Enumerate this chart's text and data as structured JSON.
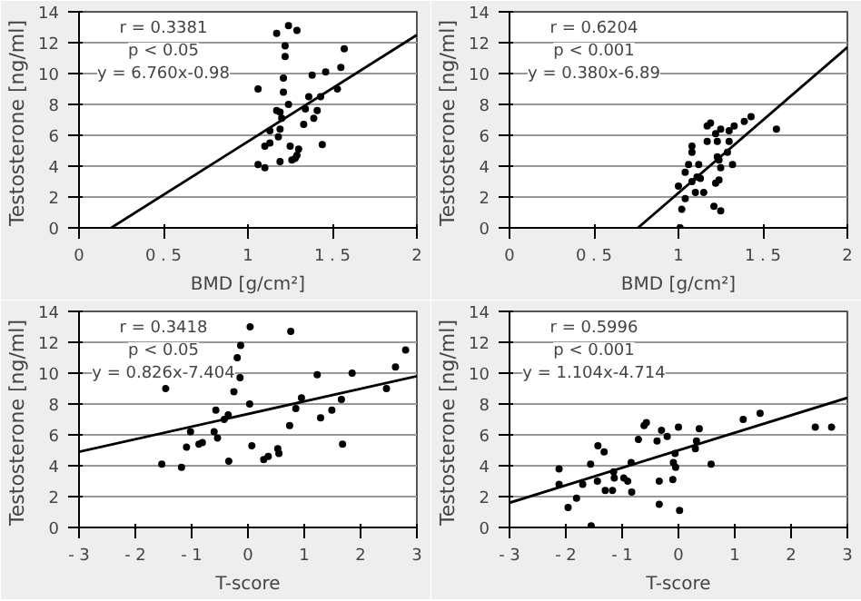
{
  "chart_data": [
    {
      "type": "scatter",
      "xlabel": "BMD [g/cm²]",
      "ylabel": "Testosterone  [ng/ml]",
      "annotations": [
        "r = 0.3381",
        "p < 0.05",
        "y = 6.760x-0.98"
      ],
      "xlim": [
        0,
        2
      ],
      "ylim": [
        0,
        14
      ],
      "xticks": [
        0,
        {
          "value": 0.5,
          "label": "0 . 5"
        },
        1,
        {
          "value": 1.5,
          "label": "1 . 5"
        },
        2
      ],
      "yticks": [
        0,
        2,
        4,
        6,
        8,
        10,
        12,
        14
      ],
      "grid": "y",
      "series": [
        {
          "marker": "circle",
          "color": "#000000",
          "x": [
            1.17,
            1.24,
            1.29,
            1.22,
            1.57,
            1.22,
            1.55,
            1.46,
            1.38,
            1.21,
            1.06,
            1.53,
            1.21,
            1.36,
            1.43,
            1.24,
            1.17,
            1.19,
            1.41,
            1.34,
            1.39,
            1.2,
            1.33,
            1.19,
            1.13,
            1.18,
            1.13,
            1.1,
            1.25,
            1.44,
            1.3,
            1.29,
            1.28,
            1.26,
            1.19,
            1.06,
            1.1
          ],
          "values": [
            12.6,
            13.1,
            12.8,
            11.8,
            11.6,
            11.1,
            10.4,
            10.1,
            9.9,
            9.7,
            9.0,
            9.0,
            8.8,
            8.5,
            8.5,
            8.0,
            7.6,
            7.5,
            7.6,
            7.7,
            7.1,
            7.1,
            6.7,
            6.4,
            6.3,
            5.9,
            5.5,
            5.3,
            5.3,
            5.4,
            5.1,
            4.7,
            4.5,
            4.4,
            4.3,
            4.1,
            3.9
          ]
        },
        {
          "type": "line",
          "color": "#000000",
          "x": [
            0.19,
            2
          ],
          "values": [
            0,
            12.5
          ]
        }
      ]
    },
    {
      "type": "scatter",
      "xlabel": "BMD [g/cm²]",
      "ylabel": "Testosterone  [ng/ml]",
      "annotations": [
        "r = 0.6204",
        "p < 0.001",
        "y = 0.380x-6.89"
      ],
      "xlim": [
        0,
        2
      ],
      "ylim": [
        0,
        14
      ],
      "xticks": [
        0,
        {
          "value": 0.5,
          "label": "0 . 5"
        },
        1,
        {
          "value": 1.5,
          "label": "1 . 5"
        },
        2
      ],
      "yticks": [
        0,
        2,
        4,
        6,
        8,
        10,
        12,
        14
      ],
      "grid": "y",
      "series": [
        {
          "marker": "circle",
          "color": "#000000",
          "x": [
            1.19,
            1.17,
            1.43,
            1.39,
            1.58,
            1.25,
            1.3,
            1.22,
            1.33,
            1.17,
            1.23,
            1.08,
            1.3,
            1.08,
            1.29,
            1.23,
            1.24,
            1.32,
            1.12,
            1.06,
            1.25,
            1.04,
            1.11,
            1.13,
            1.08,
            1.0,
            1.22,
            1.24,
            1.1,
            1.15,
            1.04,
            1.02,
            1.21,
            1.25,
            1.01
          ],
          "values": [
            6.8,
            6.6,
            7.2,
            6.9,
            6.4,
            6.4,
            6.3,
            6.1,
            6.6,
            5.6,
            5.6,
            5.3,
            5.6,
            4.9,
            4.9,
            4.6,
            4.4,
            4.1,
            4.1,
            4.1,
            3.9,
            3.6,
            3.3,
            3.2,
            3.0,
            2.7,
            2.9,
            3.1,
            2.3,
            2.3,
            1.9,
            1.2,
            1.4,
            1.1,
            0.0
          ]
        },
        {
          "type": "line",
          "color": "#000000",
          "x": [
            0.76,
            2
          ],
          "values": [
            0,
            11.7
          ]
        }
      ]
    },
    {
      "type": "scatter",
      "xlabel": "T-score",
      "ylabel": "Testosterone  [ng/ml]",
      "annotations": [
        "r = 0.3418",
        "p < 0.05",
        "y = 0.826x-7.404"
      ],
      "xlim": [
        -3,
        3
      ],
      "ylim": [
        0,
        14
      ],
      "xticks": [
        {
          "value": -3,
          "label": "- 3"
        },
        {
          "value": -2,
          "label": "- 2"
        },
        {
          "value": -1,
          "label": "- 1"
        },
        0,
        1,
        2,
        3
      ],
      "yticks": [
        0,
        2,
        4,
        6,
        8,
        10,
        12,
        14
      ],
      "grid": "y",
      "series": [
        {
          "marker": "circle",
          "color": "#000000",
          "x": [
            -1.46,
            0.04,
            0.76,
            -0.13,
            -0.19,
            -0.14,
            2.8,
            2.62,
            1.85,
            1.23,
            2.46,
            -0.25,
            0.03,
            0.95,
            1.66,
            0.85,
            -0.57,
            1.49,
            1.29,
            -0.35,
            -0.42,
            0.74,
            -1.02,
            -0.6,
            -0.54,
            -1.09,
            -0.87,
            -0.81,
            0.07,
            1.68,
            0.53,
            0.55,
            0.36,
            0.28,
            -0.34,
            -1.53,
            -1.18
          ],
          "values": [
            9.0,
            13.0,
            12.7,
            11.8,
            11.0,
            9.7,
            11.5,
            10.4,
            10.0,
            9.9,
            9.0,
            8.8,
            8.0,
            8.4,
            8.3,
            7.7,
            7.6,
            7.6,
            7.1,
            7.3,
            7.0,
            6.6,
            6.2,
            6.2,
            5.8,
            5.2,
            5.4,
            5.5,
            5.3,
            5.4,
            5.1,
            4.8,
            4.6,
            4.4,
            4.3,
            4.1,
            3.9
          ]
        },
        {
          "type": "line",
          "color": "#000000",
          "x": [
            -3,
            3
          ],
          "values": [
            4.9,
            9.8
          ]
        }
      ]
    },
    {
      "type": "scatter",
      "xlabel": "T-score",
      "ylabel": "Testosterone  [ng/ml]",
      "annotations": [
        "r = 0.5996",
        "p < 0.001",
        "y = 1.104x-4.714"
      ],
      "xlim": [
        -3,
        3
      ],
      "ylim": [
        0,
        14
      ],
      "xticks": [
        {
          "value": -3,
          "label": "- 3"
        },
        {
          "value": -2,
          "label": "- 2"
        },
        {
          "value": -1,
          "label": "- 1"
        },
        0,
        1,
        2,
        3
      ],
      "yticks": [
        0,
        2,
        4,
        6,
        8,
        10,
        12,
        14
      ],
      "grid": "y",
      "series": [
        {
          "marker": "circle",
          "color": "#000000",
          "x": [
            -0.57,
            -0.61,
            -0.71,
            -0.3,
            -0.38,
            -0.2,
            0.0,
            0.37,
            0.32,
            0.3,
            1.15,
            1.45,
            2.43,
            2.72,
            0.58,
            -0.06,
            -0.09,
            -0.05,
            -0.1,
            -0.34,
            0.02,
            -0.34,
            -1.43,
            -1.32,
            -1.56,
            -1.15,
            -1.14,
            -1.44,
            -1.7,
            -2.12,
            -2.12,
            -1.3,
            -1.17,
            -0.97,
            -0.9,
            -0.83,
            -0.84,
            -1.81,
            -1.96,
            -1.55
          ],
          "values": [
            6.8,
            6.6,
            5.7,
            6.3,
            5.6,
            5.9,
            6.5,
            6.4,
            5.6,
            5.1,
            7.0,
            7.4,
            6.5,
            6.5,
            4.1,
            4.8,
            4.2,
            3.9,
            3.1,
            3.0,
            1.1,
            1.5,
            5.3,
            4.9,
            4.1,
            3.6,
            3.2,
            3.0,
            2.8,
            3.8,
            2.8,
            2.4,
            2.4,
            3.2,
            3.0,
            2.3,
            4.2,
            1.9,
            1.3,
            0.1
          ]
        },
        {
          "type": "line",
          "color": "#000000",
          "x": [
            -3,
            3
          ],
          "values": [
            1.6,
            8.4
          ]
        }
      ]
    }
  ]
}
